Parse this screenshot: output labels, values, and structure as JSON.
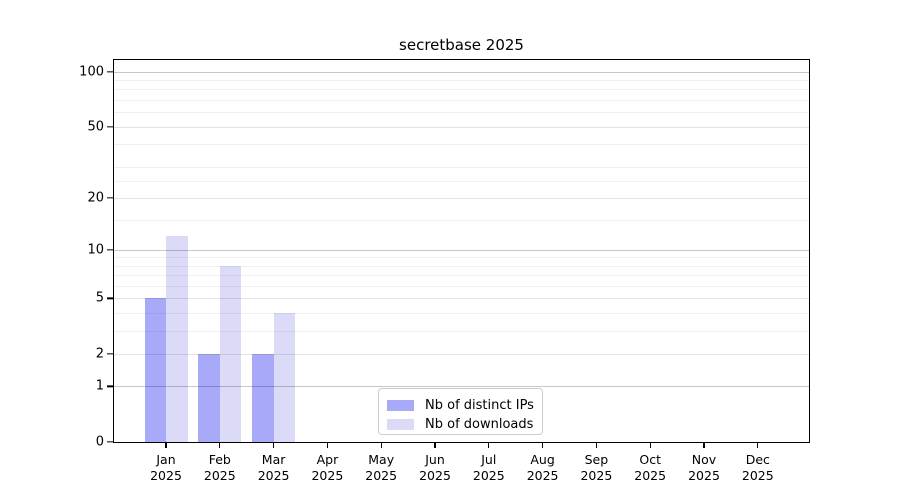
{
  "chart_data": {
    "type": "bar",
    "title": "secretbase 2025",
    "months": [
      "Jan",
      "Feb",
      "Mar",
      "Apr",
      "May",
      "Jun",
      "Jul",
      "Aug",
      "Sep",
      "Oct",
      "Nov",
      "Dec"
    ],
    "year": "2025",
    "series": [
      {
        "name": "Nb of distinct IPs",
        "color": "#a9a9fa",
        "values": [
          5,
          2,
          2,
          0,
          0,
          0,
          0,
          0,
          0,
          0,
          0,
          0
        ]
      },
      {
        "name": "Nb of downloads",
        "color": "#dbdbf8",
        "values": [
          12,
          8,
          4,
          0,
          0,
          0,
          0,
          0,
          0,
          0,
          0,
          0
        ]
      }
    ],
    "yscale": "log1p",
    "ylim": [
      0,
      116
    ],
    "yticks": [
      0,
      1,
      2,
      5,
      10,
      20,
      50,
      100
    ],
    "yticks_pow10": [
      1,
      10,
      100
    ],
    "yticks_minor": [
      3,
      4,
      6,
      7,
      8,
      9,
      15,
      25,
      30,
      40,
      60,
      70,
      80,
      90
    ],
    "grid": true,
    "legend_position": "lower center"
  }
}
